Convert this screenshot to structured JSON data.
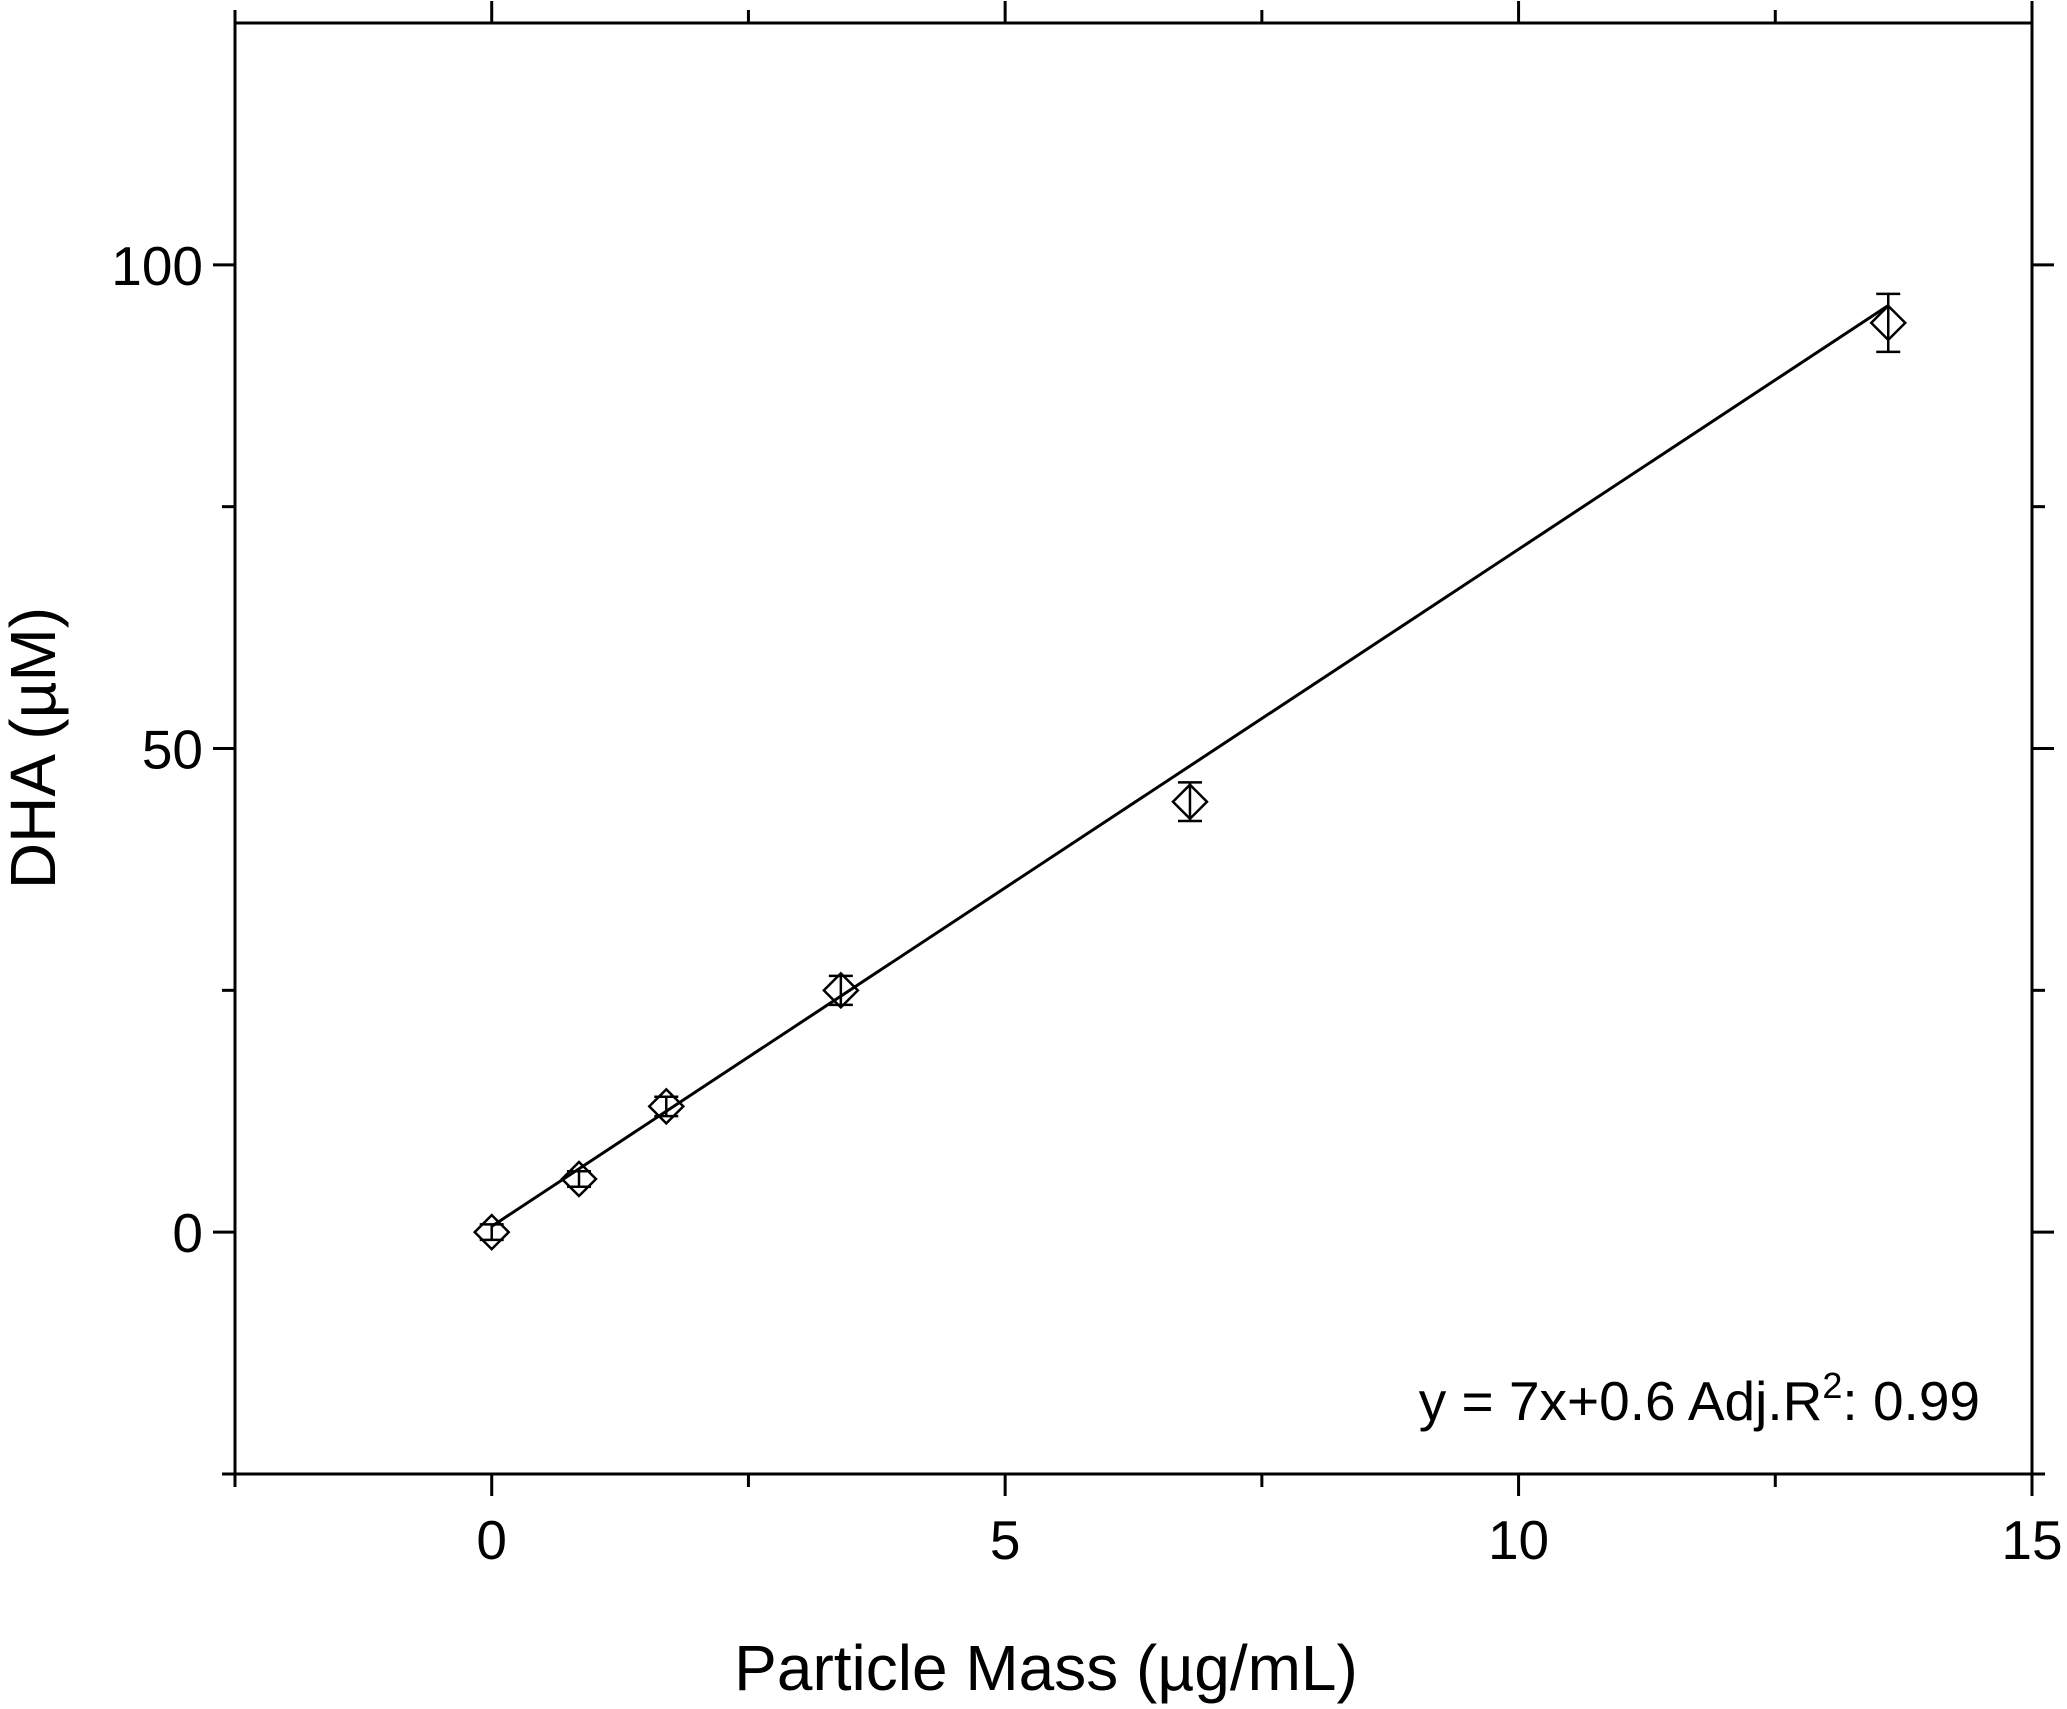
{
  "chart_data": {
    "type": "scatter",
    "title": "",
    "xlabel": "Particle Mass (µg/mL)",
    "ylabel": "DHA (µM)",
    "xlim": [
      -2.5,
      15
    ],
    "ylim": [
      -25,
      125
    ],
    "x_ticks": [
      0,
      5,
      10,
      15
    ],
    "x_tick_labels": [
      "0",
      "5",
      "10",
      "15"
    ],
    "x_minor_ticks": [
      -2.5,
      2.5,
      7.5,
      12.5
    ],
    "y_ticks": [
      0,
      50,
      100
    ],
    "y_tick_labels": [
      "0",
      "50",
      "100"
    ],
    "y_minor_ticks": [
      -25,
      25,
      75
    ],
    "grid": false,
    "legend": null,
    "series": [
      {
        "marker": "diamond",
        "color": "#000000",
        "points": [
          {
            "x": 0,
            "y": 0,
            "err": 0.8
          },
          {
            "x": 0.85,
            "y": 5.5,
            "err": 0.8
          },
          {
            "x": 1.7,
            "y": 13,
            "err": 1.0
          },
          {
            "x": 3.4,
            "y": 25,
            "err": 1.5
          },
          {
            "x": 6.8,
            "y": 44.5,
            "err": 2.0
          },
          {
            "x": 13.6,
            "y": 94,
            "err": 3.0
          }
        ]
      }
    ],
    "fit_line": {
      "slope": 7,
      "intercept": 0.6,
      "x_range": [
        0,
        13.6
      ],
      "color": "#000000"
    },
    "annotation": {
      "prefix": "y = 7x+0.6 Adj.R",
      "superscript": "2",
      "suffix": ": 0.99"
    }
  }
}
